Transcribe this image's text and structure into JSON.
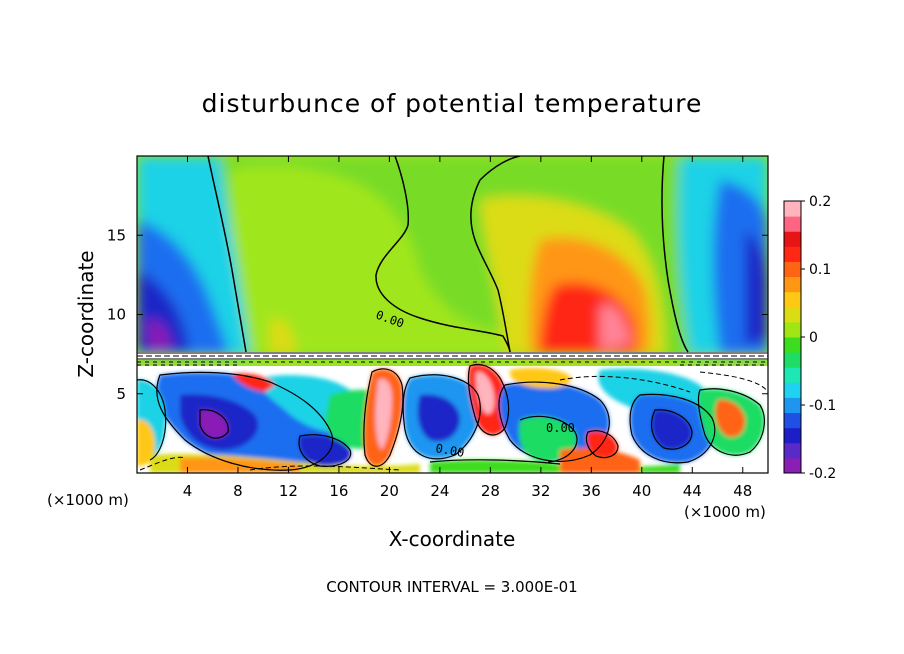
{
  "chart_data": {
    "type": "heatmap",
    "title": "disturbunce of potential temperature",
    "xlabel": "X-coordinate",
    "ylabel": "Z-coordinate",
    "x_unit_left": "(×1000 m)",
    "x_unit_right": "(×1000 m)",
    "xlim": [
      0,
      50
    ],
    "ylim": [
      0,
      20
    ],
    "x_ticks": [
      4,
      8,
      12,
      16,
      20,
      24,
      28,
      32,
      36,
      40,
      44,
      48
    ],
    "y_ticks": [
      5,
      10,
      15
    ],
    "colorbar": {
      "range": [
        -0.2,
        0.2
      ],
      "tick_values": [
        0.2,
        0.1,
        0,
        -0.1,
        -0.2
      ],
      "tick_labels": [
        "0.2",
        "0.1",
        "0",
        "-0.1",
        "-0.2"
      ],
      "colors": [
        "#8a1fb5",
        "#5a2ac8",
        "#1e1ec8",
        "#1e50e6",
        "#1e96f0",
        "#1ed2f0",
        "#1ee6b4",
        "#1edc64",
        "#3cdc1e",
        "#a0e614",
        "#dcdc14",
        "#ffc814",
        "#ff9614",
        "#ff6414",
        "#ff2814",
        "#e61414",
        "#ff6482",
        "#ffb4be"
      ]
    },
    "contour_labels": [
      "0.00",
      "0.00",
      "0.00"
    ],
    "footer": "CONTOUR INTERVAL = 3.000E-01"
  },
  "icons": {
    "colorbar_tick": "tick-mark"
  }
}
